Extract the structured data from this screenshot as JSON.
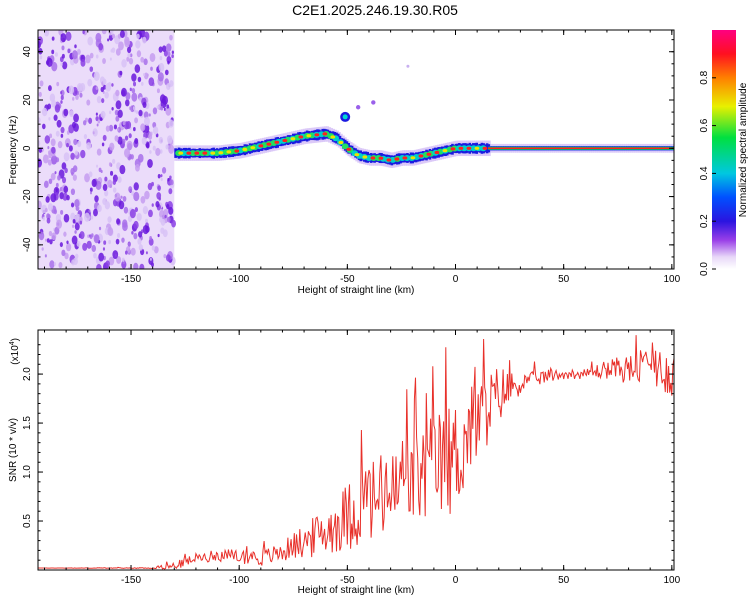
{
  "title": "C2E1.2025.246.19.30.R05",
  "chart_data": [
    {
      "type": "heatmap",
      "xlabel": "Height of straight line (km)",
      "ylabel": "Frequency (Hz)",
      "xlim": [
        -193,
        101
      ],
      "ylim": [
        -50,
        49
      ],
      "xticks": [
        -150,
        -100,
        -50,
        0,
        50,
        100
      ],
      "yticks": [
        -40,
        -20,
        0,
        20,
        40
      ],
      "noise_region_x": [
        -193,
        -130
      ],
      "ridge": {
        "x": [
          -130,
          -120,
          -110,
          -100,
          -90,
          -80,
          -70,
          -60,
          -55,
          -50,
          -45,
          -40,
          -35,
          -30,
          -25,
          -20,
          -15,
          -10,
          -5,
          0,
          5,
          10,
          15,
          20,
          30,
          40,
          50,
          60,
          70,
          80,
          90,
          100
        ],
        "freq": [
          -2,
          -2,
          -2,
          -1,
          1,
          3,
          5,
          6,
          4,
          0,
          -3,
          -4,
          -4,
          -5,
          -4,
          -4,
          -3,
          -2,
          -1,
          0,
          0,
          0,
          0,
          0,
          0,
          0,
          0,
          0,
          0,
          0,
          0,
          0
        ]
      },
      "isolated_blobs": [
        {
          "x": -51,
          "freq": 13
        },
        {
          "x": -45,
          "freq": 17
        },
        {
          "x": -38,
          "freq": 19
        },
        {
          "x": -22,
          "freq": 34
        }
      ],
      "colorbar": {
        "label": "Normalized spectral amplitude",
        "range": [
          0,
          1
        ],
        "ticks": [
          "0.0",
          "0.2",
          "0.4",
          "0.6",
          "0.8"
        ]
      }
    },
    {
      "type": "line",
      "xlabel": "Height of straight line (km)",
      "ylabel": "SNR (10 * v/v)",
      "multiplier_label": "(x10",
      "multiplier_exp": "4",
      "multiplier_close": ")",
      "xlim": [
        -193,
        101
      ],
      "ylim": [
        0,
        2.45
      ],
      "xticks": [
        -150,
        -100,
        -50,
        0,
        50,
        100
      ],
      "yticks": [
        "0.5",
        "1.0",
        "1.5",
        "2.0"
      ],
      "color": "#e8302a",
      "envelope": {
        "x": [
          -193,
          -140,
          -130,
          -120,
          -110,
          -100,
          -90,
          -80,
          -75,
          -70,
          -60,
          -50,
          -40,
          -30,
          -20,
          -10,
          0,
          10,
          20,
          30,
          40,
          50,
          60,
          70,
          80,
          90,
          95,
          100
        ],
        "y": [
          0.02,
          0.02,
          0.04,
          0.12,
          0.15,
          0.14,
          0.12,
          0.18,
          0.25,
          0.28,
          0.4,
          0.55,
          0.7,
          0.75,
          0.9,
          1.05,
          1.15,
          1.5,
          1.8,
          1.9,
          1.97,
          2.0,
          2.0,
          2.05,
          2.05,
          2.08,
          2.05,
          2.0
        ]
      },
      "noise_amp": {
        "x": [
          -193,
          -140,
          -130,
          -100,
          -80,
          -60,
          -40,
          -20,
          0,
          20,
          30,
          50,
          60,
          80,
          100
        ],
        "y": [
          0.0,
          0.005,
          0.04,
          0.07,
          0.1,
          0.25,
          0.45,
          0.5,
          0.6,
          0.3,
          0.1,
          0.05,
          0.05,
          0.15,
          0.25
        ]
      }
    }
  ]
}
